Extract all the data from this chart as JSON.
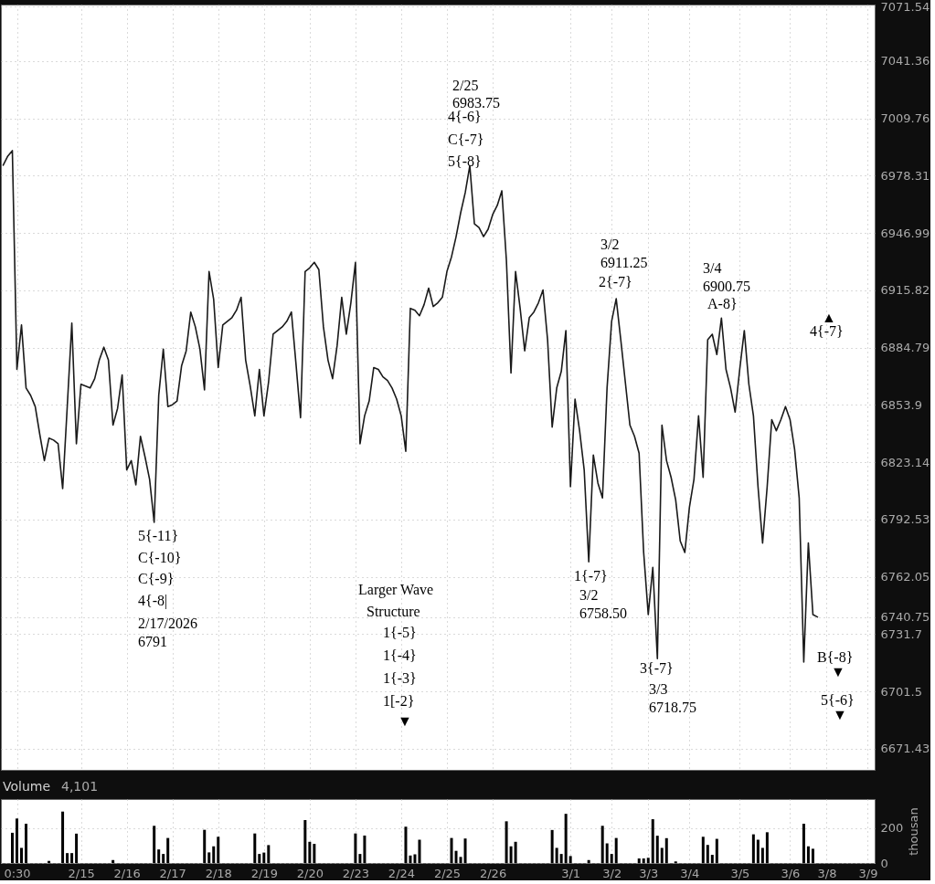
{
  "chart_data": [
    {
      "type": "line",
      "color": "#1a1a1a",
      "categories": [
        null,
        null,
        null,
        null,
        null,
        null,
        null,
        null,
        null,
        null,
        null,
        null,
        null,
        null,
        null,
        null,
        null,
        null,
        null,
        null,
        null,
        null,
        null,
        null,
        null,
        null,
        null,
        null,
        null,
        null,
        null,
        null,
        null,
        null,
        null,
        null,
        null,
        null,
        null,
        null,
        null,
        null,
        null,
        null,
        null,
        null,
        null,
        null,
        null,
        null,
        null,
        null,
        null,
        null,
        null,
        null,
        null,
        null,
        null,
        null,
        null,
        null,
        null,
        null,
        null,
        null,
        null,
        null,
        null,
        null,
        null,
        null,
        null,
        null,
        null,
        null,
        null,
        null,
        null,
        null,
        null,
        null,
        null,
        null,
        null,
        null,
        null,
        null,
        null,
        null,
        null,
        null,
        null,
        null,
        null,
        null,
        null,
        null,
        null,
        null,
        null,
        null,
        null,
        null,
        null,
        null,
        null,
        null,
        null,
        null,
        null,
        null,
        null,
        null,
        null,
        null,
        null,
        null,
        null,
        null,
        null,
        null,
        null,
        null,
        null,
        null,
        null,
        null,
        null,
        null,
        null,
        null,
        null,
        null,
        null,
        null,
        null,
        null,
        null,
        null,
        null,
        null,
        null,
        null,
        null,
        null,
        null,
        null,
        null,
        null,
        null,
        null,
        null,
        null,
        null,
        null,
        null,
        null,
        null,
        null,
        null,
        null,
        null,
        null,
        null,
        null,
        null,
        null,
        null,
        null,
        null,
        null,
        null,
        null,
        null,
        null,
        null,
        null,
        null,
        null,
        null,
        null,
        null,
        null,
        null,
        null,
        null,
        null,
        null,
        null,
        null
      ],
      "values": [
        6984,
        6989,
        6992,
        6873,
        6897,
        6863,
        6859,
        6853,
        6838,
        6824,
        6836,
        6835,
        6833,
        6809,
        6853,
        6898,
        6833,
        6865,
        6864,
        6863,
        6868,
        6878,
        6885,
        6878,
        6843,
        6852,
        6870,
        6819,
        6824,
        6811,
        6837,
        6826,
        6814,
        6791,
        6859,
        6884,
        6853,
        6854,
        6856,
        6875,
        6883,
        6904,
        6896,
        6884,
        6862,
        6926,
        6911,
        6874,
        6897,
        6899,
        6901,
        6905,
        6912,
        6878,
        6864,
        6848,
        6873,
        6848,
        6866,
        6892,
        6894,
        6896,
        6899,
        6904,
        6876,
        6847,
        6926,
        6928,
        6931,
        6927,
        6896,
        6878,
        6868,
        6886,
        6912,
        6892,
        6909,
        6931,
        6833,
        6848,
        6856,
        6874,
        6873,
        6869,
        6867,
        6863,
        6857,
        6848,
        6829,
        6906,
        6905,
        6902,
        6908,
        6917,
        6907,
        6909,
        6912,
        6926,
        6934,
        6945,
        6958,
        6969,
        6983.75,
        6952,
        6950,
        6945,
        6949,
        6957,
        6962,
        6970,
        6932,
        6871,
        6926,
        6906,
        6883,
        6901,
        6904,
        6909,
        6916,
        6889,
        6842,
        6863,
        6872,
        6894,
        6810,
        6857,
        6840,
        6819,
        6770,
        6827,
        6812,
        6804,
        6863,
        6899,
        6911.25,
        6889,
        6866,
        6843,
        6837,
        6828,
        6775,
        6742,
        6767,
        6718.75,
        6843,
        6824,
        6815,
        6803,
        6781,
        6775,
        6799,
        6814,
        6848,
        6815,
        6889,
        6892,
        6881,
        6900.75,
        6873,
        6863,
        6850,
        6873,
        6894,
        6865,
        6848,
        6810,
        6780,
        6810,
        6846,
        6840,
        6846,
        6853,
        6846,
        6830,
        6804,
        6717,
        6780,
        6742,
        6740.75,
        null,
        null,
        null,
        null,
        null,
        null,
        null,
        null,
        null,
        null,
        null,
        null
      ],
      "ylim": [
        6660.4,
        7072.6
      ],
      "yticks": [
        6671.43,
        6701.5,
        6731.7,
        6740.75,
        6762.05,
        6792.53,
        6823.14,
        6853.9,
        6884.79,
        6915.82,
        6946.99,
        6978.31,
        7009.76,
        7041.36,
        7071.54
      ],
      "log": "y",
      "grid": true,
      "tick_labels": "y",
      "annotations": [
        "2/25",
        "6983.75",
        "4{-6}",
        "C{-7}",
        "5{-8}",
        "3/2",
        "6911.25",
        "2{-7}",
        "3/4",
        "6900.75",
        "A-8}",
        "▲",
        "4{-7}",
        "5{-11}",
        "C{-10}",
        "C{-9}",
        "4{-8|",
        "2/17/2026",
        "6791",
        "Larger Wave",
        "Structure",
        "1{-5}",
        "1{-4}",
        "1{-3}",
        "1[-2}",
        "▼",
        "1{-7}",
        "3/2",
        "6758.50",
        "3{-7}",
        "3/3",
        "6718.75",
        "B{-8}",
        "▼",
        "5{-6}",
        "▼"
      ]
    },
    {
      "type": "bar",
      "title": "Volume",
      "ylabel": "thousan",
      "color": "#000000",
      "categories": [
        null,
        null,
        null,
        "0:30",
        null,
        null,
        null,
        null,
        null,
        null,
        null,
        null,
        null,
        null,
        null,
        null,
        null,
        "2/15",
        null,
        null,
        null,
        null,
        null,
        null,
        null,
        null,
        null,
        "2/16",
        null,
        null,
        null,
        null,
        null,
        null,
        null,
        null,
        null,
        "2/17",
        null,
        null,
        null,
        null,
        null,
        null,
        null,
        null,
        null,
        "2/18",
        null,
        null,
        null,
        null,
        null,
        null,
        null,
        null,
        null,
        "2/19",
        null,
        null,
        null,
        null,
        null,
        null,
        null,
        null,
        null,
        "2/20",
        null,
        null,
        null,
        null,
        null,
        null,
        null,
        null,
        null,
        "2/23",
        null,
        null,
        null,
        null,
        null,
        null,
        null,
        null,
        null,
        "2/24",
        null,
        null,
        null,
        null,
        null,
        null,
        null,
        null,
        null,
        "2/25",
        null,
        null,
        null,
        null,
        null,
        null,
        null,
        null,
        null,
        "2/26",
        null,
        null,
        null,
        null,
        null,
        null,
        null,
        null,
        null,
        null,
        null,
        null,
        null,
        null,
        null,
        null,
        "3/1",
        null,
        null,
        null,
        null,
        null,
        null,
        null,
        null,
        "3/2",
        null,
        null,
        null,
        null,
        null,
        null,
        null,
        "3/3",
        null,
        null,
        null,
        null,
        null,
        null,
        null,
        null,
        "3/4",
        null,
        null,
        null,
        null,
        null,
        null,
        null,
        null,
        null,
        null,
        "3/5",
        null,
        null,
        null,
        null,
        null,
        null,
        null,
        null,
        null,
        null,
        "3/6",
        null,
        null,
        null,
        null,
        null,
        null,
        null,
        "3/8",
        null,
        null,
        null,
        null,
        null,
        null,
        null,
        null,
        "3/9",
        null
      ],
      "values": [
        null,
        null,
        174,
        256,
        87,
        226,
        null,
        null,
        null,
        null,
        12,
        null,
        null,
        296,
        57,
        57,
        169,
        null,
        null,
        null,
        null,
        null,
        null,
        null,
        17,
        null,
        null,
        null,
        null,
        null,
        null,
        null,
        null,
        214,
        78,
        52,
        144,
        null,
        null,
        null,
        null,
        null,
        null,
        null,
        191,
        61,
        96,
        151,
        null,
        null,
        null,
        null,
        null,
        null,
        null,
        170,
        52,
        60,
        103,
        null,
        null,
        null,
        null,
        null,
        null,
        null,
        247,
        122,
        110,
        null,
        null,
        null,
        null,
        null,
        null,
        null,
        null,
        170,
        52,
        158,
        null,
        null,
        null,
        null,
        null,
        null,
        null,
        null,
        209,
        43,
        50,
        134,
        null,
        null,
        null,
        null,
        null,
        null,
        144,
        70,
        35,
        141,
        null,
        null,
        null,
        null,
        null,
        null,
        null,
        null,
        240,
        96,
        122,
        null,
        null,
        null,
        null,
        null,
        null,
        null,
        190,
        87,
        52,
        283,
        40,
        null,
        null,
        null,
        17,
        null,
        null,
        214,
        113,
        52,
        144,
        null,
        null,
        null,
        null,
        26,
        26,
        30,
        252,
        157,
        87,
        143,
        null,
        9,
        null,
        null,
        null,
        null,
        null,
        151,
        104,
        47,
        139,
        null,
        null,
        null,
        null,
        null,
        null,
        null,
        165,
        134,
        87,
        177,
        null,
        null,
        null,
        null,
        null,
        null,
        null,
        226,
        96,
        82,
        null,
        null,
        null,
        null,
        null,
        null,
        null,
        null,
        null,
        null,
        null,
        null,
        null
      ],
      "ylim": [
        0,
        368
      ],
      "yticks": [
        0,
        200
      ],
      "grid": true,
      "annotations": [
        "4,101"
      ]
    }
  ]
}
